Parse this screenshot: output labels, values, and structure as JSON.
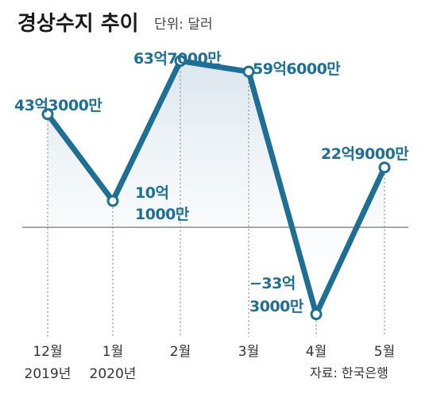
{
  "chart_data": {
    "type": "line",
    "title": "경상수지 추이",
    "unit": "단위: 달러",
    "categories": [
      "12월",
      "1월",
      "2월",
      "3월",
      "4월",
      "5월"
    ],
    "years": [
      "2019년",
      "2020년"
    ],
    "values": [
      43.3,
      10.1,
      63.7,
      59.6,
      -33.3,
      22.9
    ],
    "data_labels": [
      [
        "43억3000만"
      ],
      [
        "10억",
        "1000만"
      ],
      [
        "63억7000만"
      ],
      [
        "59억6000만"
      ],
      [
        "−33억",
        "3000만"
      ],
      [
        "22억9000만"
      ]
    ],
    "ylim": [
      -45,
      70
    ],
    "source": "자료: 한국은행",
    "colors": {
      "line": "#1f6f95",
      "fill": "#dfe9f0"
    }
  }
}
